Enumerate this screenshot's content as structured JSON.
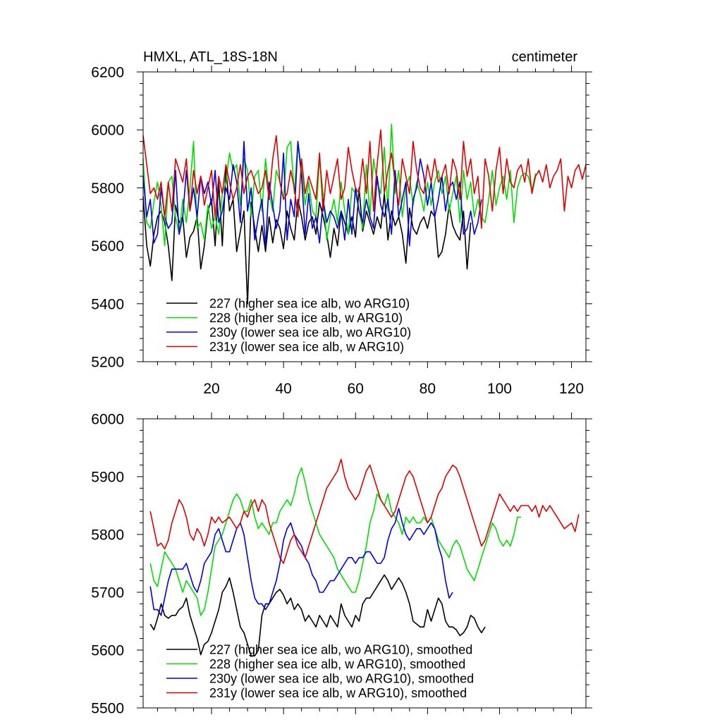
{
  "figure": {
    "left_title": "HMXL, ATL_18S-18N",
    "right_title": "centimeter"
  },
  "chart_data": [
    {
      "type": "line",
      "title": "HMXL, ATL_18S-18N",
      "units": "centimeter",
      "xlabel": "",
      "ylabel": "",
      "xlim": [
        1,
        124
      ],
      "ylim": [
        5200,
        6200
      ],
      "xticks": [
        "20",
        "40",
        "60",
        "80",
        "100",
        "120"
      ],
      "yticks": [
        "5200",
        "5400",
        "5600",
        "5800",
        "6000",
        "6200"
      ],
      "legend_position": "lower-left",
      "grid": false,
      "series": [
        {
          "name": "227 (higher sea ice alb, wo ARG10)",
          "color": "#000000",
          "x_start": 1,
          "values": [
            5770,
            5600,
            5530,
            5640,
            5700,
            5720,
            5680,
            5600,
            5480,
            5740,
            5680,
            5700,
            5560,
            5630,
            5650,
            5700,
            5520,
            5600,
            5720,
            5760,
            5600,
            5820,
            5600,
            5870,
            5720,
            5760,
            5580,
            5650,
            5720,
            5400,
            5750,
            5660,
            5580,
            5670,
            5580,
            5700,
            5610,
            5690,
            5660,
            5590,
            5720,
            5660,
            5620,
            5760,
            5700,
            5620,
            5680,
            5700,
            5640,
            5750,
            5700,
            5640,
            5560,
            5660,
            5600,
            5720,
            5680,
            5640,
            5700,
            5630,
            5800,
            5650,
            5720,
            5680,
            5640,
            5700,
            5660,
            5780,
            5620,
            5720,
            5670,
            5700,
            5640,
            5540,
            5730,
            5660,
            5640,
            5680,
            5700,
            5660,
            5720,
            5700,
            5560,
            5580,
            5640,
            5740,
            5670,
            5640,
            5620,
            5720,
            5520,
            5680
          ]
        },
        {
          "name": "228 (higher sea ice alb, w ARG10)",
          "color": "#00e000",
          "x_start": 1,
          "values": [
            5900,
            5680,
            5660,
            5750,
            5820,
            5740,
            5600,
            5820,
            5840,
            5700,
            5640,
            5760,
            5680,
            5800,
            5960,
            5660,
            5680,
            5620,
            5740,
            5660,
            5700,
            5640,
            5780,
            5820,
            5920,
            5860,
            5880,
            5740,
            5900,
            5860,
            5700,
            5840,
            5860,
            5720,
            5900,
            5780,
            5720,
            5860,
            5820,
            5760,
            5940,
            5960,
            5780,
            5960,
            5860,
            5740,
            5820,
            5720,
            5700,
            5900,
            5780,
            5620,
            5700,
            5760,
            5680,
            5820,
            5720,
            5640,
            5800,
            5780,
            5720,
            5660,
            5880,
            5700,
            5900,
            5820,
            5780,
            5940,
            5720,
            6020,
            5780,
            5860,
            5700,
            5800,
            5840,
            5740,
            5820,
            5780,
            5720,
            5820,
            5740,
            5820,
            5860,
            5780,
            5840,
            5720,
            5780,
            5840,
            5680,
            5860,
            5760,
            5820,
            5700,
            5760,
            5700,
            5680,
            5760,
            5860,
            5740,
            5800,
            5840,
            5760,
            5860,
            5680,
            5800,
            5840,
            5850,
            5840,
            5790,
            5850
          ]
        },
        {
          "name": "230y (lower sea ice alb, wo ARG10)",
          "color": "#0000e0",
          "x_start": 1,
          "values": [
            5840,
            5700,
            5760,
            5610,
            5640,
            5800,
            5700,
            5660,
            5680,
            5860,
            5640,
            5700,
            5860,
            5720,
            5800,
            5700,
            5840,
            5780,
            5820,
            5740,
            5860,
            5680,
            5720,
            5800,
            5760,
            5880,
            5820,
            5680,
            5960,
            5720,
            5800,
            5620,
            5700,
            5760,
            5600,
            5820,
            5740,
            5660,
            5720,
            5920,
            5620,
            5760,
            5700,
            5960,
            5840,
            5640,
            5780,
            5660,
            5700,
            5610,
            5760,
            5680,
            5720,
            5700,
            5660,
            5720,
            5620,
            5760,
            5640,
            5800,
            5720,
            5680,
            5760,
            5700,
            5660,
            5840,
            5740,
            5700,
            5760,
            5640,
            5860,
            5700,
            5760,
            5820,
            5600,
            5760,
            5800,
            5900,
            5840,
            5740,
            5820,
            5700,
            5760,
            5840,
            5720,
            5800,
            5820,
            5760,
            5820,
            5640,
            5660,
            5720,
            5640,
            5680,
            5760
          ]
        },
        {
          "name": "231y (lower sea ice alb, w ARG10)",
          "color": "#e00000",
          "x_start": 1,
          "values": [
            5980,
            5880,
            5780,
            5800,
            5760,
            5820,
            5700,
            5820,
            5720,
            5900,
            5860,
            5820,
            5900,
            5720,
            5860,
            5780,
            5840,
            5740,
            5800,
            5860,
            5700,
            5840,
            5780,
            5880,
            5820,
            5760,
            5800,
            5880,
            5780,
            5840,
            5860,
            5820,
            5780,
            5800,
            5860,
            5760,
            5900,
            5980,
            5820,
            5760,
            5780,
            5860,
            5800,
            5700,
            5900,
            5780,
            5840,
            5800,
            5760,
            5920,
            5720,
            5860,
            5780,
            5840,
            5900,
            5760,
            5800,
            5940,
            5860,
            5800,
            5780,
            5900,
            5780,
            5960,
            5720,
            5880,
            6000,
            5780,
            5860,
            5920,
            5820,
            5740,
            5900,
            5840,
            5780,
            5960,
            5860,
            5800,
            5780,
            5880,
            5820,
            5900,
            5820,
            5840,
            5880,
            5780,
            5900,
            5860,
            5760,
            5960,
            5840,
            5900,
            5780,
            5840,
            5660,
            5900,
            5840,
            5720,
            5860,
            5940,
            5780,
            5900,
            5820,
            5800,
            5860,
            5880,
            5820,
            5900,
            5780,
            5840,
            5860,
            5820,
            5880,
            5800,
            5840,
            5860,
            5900,
            5720,
            5840,
            5800,
            5860,
            5880,
            5830,
            5880
          ]
        }
      ]
    },
    {
      "type": "line",
      "title": "",
      "xlabel": "",
      "ylabel": "",
      "xlim": [
        1,
        124
      ],
      "ylim": [
        5500,
        6000
      ],
      "yticks": [
        "5500",
        "5600",
        "5700",
        "5800",
        "5900",
        "6000"
      ],
      "legend_position": "lower-left",
      "grid": false,
      "series": [
        {
          "name": "227 (higher sea ice alb, wo ARG10), smoothed",
          "color": "#000000",
          "x_start": 3,
          "values": [
            5645,
            5635,
            5655,
            5680,
            5660,
            5655,
            5660,
            5660,
            5670,
            5675,
            5690,
            5660,
            5640,
            5620,
            5592,
            5610,
            5615,
            5630,
            5650,
            5670,
            5700,
            5710,
            5725,
            5700,
            5670,
            5640,
            5630,
            5610,
            5590,
            5590,
            5600,
            5660,
            5680,
            5680,
            5690,
            5700,
            5705,
            5695,
            5680,
            5690,
            5670,
            5680,
            5670,
            5650,
            5660,
            5650,
            5640,
            5660,
            5650,
            5640,
            5660,
            5650,
            5640,
            5680,
            5660,
            5650,
            5640,
            5660,
            5650,
            5680,
            5690,
            5690,
            5700,
            5710,
            5720,
            5730,
            5720,
            5705,
            5715,
            5725,
            5715,
            5700,
            5680,
            5650,
            5645,
            5640,
            5640,
            5670,
            5650,
            5670,
            5690,
            5680,
            5650,
            5640,
            5640,
            5635,
            5625,
            5630,
            5640,
            5660,
            5655,
            5640,
            5630,
            5640
          ]
        },
        {
          "name": "228 (higher sea ice alb, w ARG10), smoothed",
          "color": "#00e000",
          "x_start": 3,
          "values": [
            5750,
            5720,
            5710,
            5740,
            5770,
            5760,
            5750,
            5740,
            5720,
            5700,
            5720,
            5710,
            5700,
            5690,
            5660,
            5670,
            5700,
            5740,
            5780,
            5790,
            5800,
            5820,
            5840,
            5860,
            5870,
            5860,
            5840,
            5840,
            5860,
            5830,
            5810,
            5820,
            5810,
            5800,
            5820,
            5820,
            5840,
            5850,
            5860,
            5850,
            5870,
            5900,
            5915,
            5890,
            5860,
            5840,
            5820,
            5800,
            5790,
            5780,
            5770,
            5760,
            5740,
            5730,
            5720,
            5710,
            5700,
            5700,
            5720,
            5750,
            5780,
            5820,
            5840,
            5870,
            5860,
            5850,
            5870,
            5840,
            5830,
            5820,
            5800,
            5830,
            5820,
            5830,
            5820,
            5820,
            5830,
            5820,
            5830,
            5810,
            5790,
            5780,
            5770,
            5760,
            5780,
            5790,
            5780,
            5760,
            5740,
            5730,
            5720,
            5740,
            5760,
            5780,
            5800,
            5820,
            5810,
            5790,
            5780,
            5790,
            5780,
            5800,
            5830,
            5830
          ]
        },
        {
          "name": "230y (lower sea ice alb, wo ARG10), smoothed",
          "color": "#0000e0",
          "x_start": 3,
          "values": [
            5710,
            5670,
            5670,
            5660,
            5690,
            5720,
            5740,
            5740,
            5740,
            5740,
            5750,
            5730,
            5710,
            5700,
            5720,
            5750,
            5760,
            5770,
            5800,
            5810,
            5790,
            5770,
            5770,
            5790,
            5810,
            5820,
            5800,
            5760,
            5720,
            5690,
            5680,
            5680,
            5670,
            5680,
            5700,
            5720,
            5750,
            5790,
            5810,
            5820,
            5800,
            5790,
            5780,
            5760,
            5750,
            5730,
            5720,
            5700,
            5700,
            5710,
            5720,
            5720,
            5730,
            5740,
            5750,
            5760,
            5760,
            5750,
            5760,
            5760,
            5770,
            5770,
            5760,
            5750,
            5750,
            5760,
            5790,
            5810,
            5820,
            5845,
            5820,
            5800,
            5790,
            5800,
            5810,
            5810,
            5800,
            5810,
            5820,
            5810,
            5780,
            5760,
            5720,
            5690,
            5700
          ]
        },
        {
          "name": "231y (lower sea ice alb, w ARG10), smoothed",
          "color": "#e00000",
          "x_start": 3,
          "values": [
            5840,
            5810,
            5780,
            5785,
            5775,
            5790,
            5820,
            5840,
            5860,
            5850,
            5830,
            5800,
            5790,
            5810,
            5800,
            5780,
            5800,
            5830,
            5820,
            5830,
            5820,
            5825,
            5830,
            5820,
            5810,
            5820,
            5840,
            5830,
            5850,
            5860,
            5840,
            5860,
            5850,
            5820,
            5800,
            5780,
            5760,
            5750,
            5770,
            5790,
            5800,
            5780,
            5770,
            5760,
            5780,
            5800,
            5820,
            5840,
            5860,
            5880,
            5890,
            5900,
            5910,
            5930,
            5900,
            5880,
            5870,
            5860,
            5870,
            5890,
            5910,
            5920,
            5900,
            5880,
            5860,
            5850,
            5840,
            5830,
            5840,
            5860,
            5880,
            5900,
            5910,
            5900,
            5880,
            5860,
            5840,
            5820,
            5830,
            5850,
            5870,
            5880,
            5900,
            5910,
            5920,
            5915,
            5900,
            5880,
            5860,
            5840,
            5820,
            5800,
            5780,
            5790,
            5810,
            5830,
            5850,
            5870,
            5860,
            5850,
            5840,
            5850,
            5840,
            5850,
            5850,
            5850,
            5840,
            5850,
            5830,
            5850,
            5840,
            5850,
            5840,
            5830,
            5820,
            5810,
            5815,
            5820,
            5805,
            5835
          ]
        }
      ]
    }
  ]
}
